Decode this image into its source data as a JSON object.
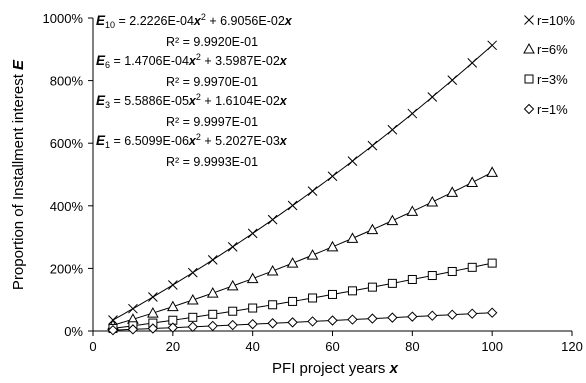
{
  "chart_data": {
    "type": "scatter",
    "xlabel": "PFI project years",
    "xlabel_var": "x",
    "ylabel": "Proportion of Installment interest",
    "ylabel_var": "E",
    "xlim": [
      0,
      120
    ],
    "ylim": [
      0,
      10
    ],
    "x_ticks": [
      "0",
      "20",
      "40",
      "60",
      "80",
      "100",
      "120"
    ],
    "y_ticks": [
      "0%",
      "200%",
      "400%",
      "600%",
      "800%",
      "1000%"
    ],
    "grid": false,
    "legend_position": "right",
    "x": [
      5,
      10,
      15,
      20,
      25,
      30,
      35,
      40,
      45,
      50,
      55,
      60,
      65,
      70,
      75,
      80,
      85,
      90,
      95,
      100
    ],
    "series": [
      {
        "name": "r=10%",
        "marker": "x",
        "a": 0.00022226,
        "b": 0.069056,
        "subscript": "10",
        "values": [
          0.351,
          0.713,
          1.086,
          1.47,
          1.866,
          2.272,
          2.689,
          3.118,
          3.558,
          4.009,
          4.47,
          4.944,
          5.428,
          5.923,
          6.429,
          6.947,
          7.475,
          8.015,
          8.566,
          9.128
        ],
        "equation": "2.2226E-04x² + 6.9056E-02x",
        "r2": "R² = 9.9920E-01"
      },
      {
        "name": "r=6%",
        "marker": "triangle",
        "a": 0.00014706,
        "b": 0.035987,
        "subscript": "6",
        "values": [
          0.184,
          0.375,
          0.573,
          0.778,
          0.991,
          1.212,
          1.44,
          1.675,
          1.917,
          2.167,
          2.424,
          2.689,
          2.96,
          3.239,
          3.526,
          3.82,
          4.121,
          4.43,
          4.746,
          5.069
        ],
        "equation": "1.4706E-04x² + 3.5987E-02x",
        "r2": "R² = 9.9970E-01"
      },
      {
        "name": "r=3%",
        "marker": "square",
        "a": 5.5886e-05,
        "b": 0.016104,
        "subscript": "3",
        "values": [
          0.082,
          0.167,
          0.254,
          0.344,
          0.437,
          0.533,
          0.632,
          0.734,
          0.838,
          0.945,
          1.055,
          1.168,
          1.283,
          1.401,
          1.522,
          1.646,
          1.772,
          1.902,
          2.034,
          2.169
        ],
        "equation": "5.5886E-05x² + 1.6104E-02x",
        "r2": "R² = 9.9997E-01"
      },
      {
        "name": "r=1%",
        "marker": "diamond",
        "a": 6.5099e-06,
        "b": 0.0052027,
        "subscript": "1",
        "values": [
          0.026,
          0.053,
          0.08,
          0.107,
          0.134,
          0.162,
          0.19,
          0.219,
          0.247,
          0.276,
          0.306,
          0.336,
          0.366,
          0.396,
          0.427,
          0.458,
          0.489,
          0.521,
          0.553,
          0.585
        ],
        "equation": "6.5099E-06x² + 5.2027E-03x",
        "r2": "R² = 9.9993E-01"
      }
    ]
  }
}
